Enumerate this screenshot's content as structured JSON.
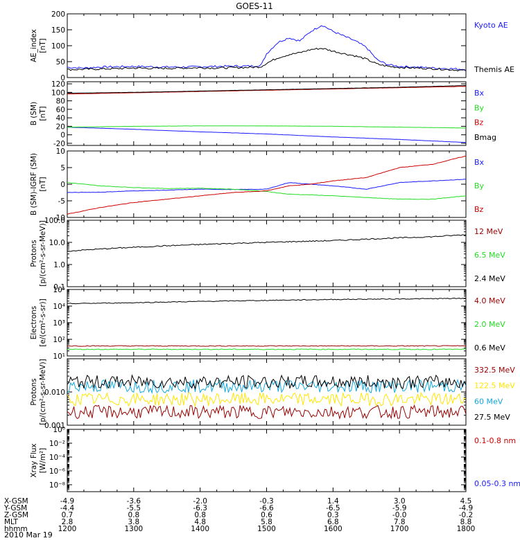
{
  "title": "GOES-11",
  "date_label": "2010 Mar 19",
  "colors": {
    "blue": "#1a1aff",
    "green": "#22dd22",
    "red": "#cc0000",
    "darkred": "#990000",
    "black": "#000000",
    "yellow": "#ffe600",
    "cyan": "#12a8dd"
  },
  "ephemeris": {
    "row_labels": [
      "X-GSM",
      "Y-GSM",
      "Z-GSM",
      "MLT",
      "hhmm"
    ],
    "columns": [
      {
        "x": 1200,
        "X": "-4.9",
        "Y": "-4.4",
        "Z": "0.7",
        "MLT": "2.8",
        "hhmm": "1200"
      },
      {
        "x": 1300,
        "X": "-3.6",
        "Y": "-5.5",
        "Z": "0.8",
        "MLT": "3.8",
        "hhmm": "1300"
      },
      {
        "x": 1400,
        "X": "-2.0",
        "Y": "-6.3",
        "Z": "0.8",
        "MLT": "4.8",
        "hhmm": "1400"
      },
      {
        "x": 1500,
        "X": "-0.3",
        "Y": "-6.6",
        "Z": "0.6",
        "MLT": "5.8",
        "hhmm": "1500"
      },
      {
        "x": 1600,
        "X": "1.4",
        "Y": "-6.5",
        "Z": "0.3",
        "MLT": "6.8",
        "hhmm": "1600"
      },
      {
        "x": 1700,
        "X": "3.0",
        "Y": "-5.9",
        "Z": "-0.0",
        "MLT": "7.8",
        "hhmm": "1700"
      },
      {
        "x": 1800,
        "X": "4.5",
        "Y": "-4.9",
        "Z": "-0.2",
        "MLT": "8.8",
        "hhmm": "1800"
      }
    ]
  },
  "chart_data": [
    {
      "type": "line",
      "ylabel": [
        "AE_index",
        "[nT]"
      ],
      "ylim": [
        0,
        200
      ],
      "yscale": "linear",
      "yticks": [
        0,
        50,
        100,
        150,
        200
      ],
      "ytick_labels": [
        "0",
        "50",
        "100",
        "150",
        "200"
      ],
      "series": [
        {
          "name": "Kyoto AE",
          "color": "#1a1aff",
          "x": [
            1200,
            1215,
            1230,
            1245,
            1300,
            1315,
            1330,
            1345,
            1400,
            1415,
            1430,
            1445,
            1455,
            1500,
            1510,
            1520,
            1530,
            1540,
            1550,
            1600,
            1610,
            1620,
            1630,
            1640,
            1650,
            1700,
            1715,
            1730,
            1745,
            1800
          ],
          "values": [
            32,
            30,
            33,
            34,
            35,
            34,
            33,
            33,
            34,
            35,
            36,
            36,
            38,
            75,
            110,
            125,
            115,
            145,
            165,
            145,
            130,
            115,
            95,
            55,
            40,
            35,
            33,
            30,
            28,
            26
          ]
        },
        {
          "name": "Themis AE",
          "color": "#000000",
          "x": [
            1200,
            1215,
            1230,
            1245,
            1300,
            1315,
            1330,
            1345,
            1400,
            1415,
            1430,
            1445,
            1455,
            1500,
            1510,
            1520,
            1530,
            1540,
            1550,
            1600,
            1610,
            1620,
            1630,
            1640,
            1650,
            1700,
            1715,
            1730,
            1745,
            1800
          ],
          "values": [
            25,
            26,
            27,
            28,
            30,
            29,
            29,
            30,
            31,
            30,
            31,
            32,
            34,
            45,
            62,
            72,
            78,
            88,
            92,
            83,
            75,
            68,
            58,
            42,
            35,
            32,
            30,
            28,
            25,
            22
          ]
        }
      ]
    },
    {
      "type": "line",
      "ylabel": [
        "B (SM)",
        "[nT]"
      ],
      "ylim": [
        -25,
        125
      ],
      "yscale": "linear",
      "yticks": [
        -20,
        0,
        20,
        40,
        60,
        80,
        100,
        120
      ],
      "ytick_labels": [
        "-20",
        "0",
        "20",
        "40",
        "60",
        "80",
        "100",
        "120"
      ],
      "series": [
        {
          "name": "Bx",
          "color": "#1a1aff",
          "x": [
            1200,
            1300,
            1400,
            1500,
            1600,
            1700,
            1800
          ],
          "values": [
            18,
            13,
            7,
            2,
            -5,
            -11,
            -18
          ]
        },
        {
          "name": "By",
          "color": "#22dd22",
          "x": [
            1200,
            1300,
            1400,
            1500,
            1600,
            1700,
            1800
          ],
          "values": [
            18,
            20,
            21,
            21,
            20,
            18,
            16
          ]
        },
        {
          "name": "Bz",
          "color": "#cc0000",
          "x": [
            1200,
            1300,
            1400,
            1500,
            1600,
            1700,
            1800
          ],
          "values": [
            96,
            99,
            102,
            105,
            108,
            111,
            114
          ]
        },
        {
          "name": "Bmag",
          "color": "#000000",
          "x": [
            1200,
            1300,
            1400,
            1500,
            1600,
            1700,
            1800
          ],
          "values": [
            98,
            100,
            103,
            106,
            109,
            112,
            116
          ]
        }
      ]
    },
    {
      "type": "line",
      "ylabel": [
        "B (SM)-IGRF (SM)",
        "[nT]"
      ],
      "ylim": [
        -10,
        10
      ],
      "yscale": "linear",
      "yticks": [
        -10,
        -5,
        0,
        5,
        10
      ],
      "ytick_labels": [
        "-10",
        "-5",
        "0",
        "5",
        "10"
      ],
      "series": [
        {
          "name": "Bx",
          "color": "#1a1aff",
          "x": [
            1200,
            1230,
            1300,
            1330,
            1400,
            1430,
            1500,
            1520,
            1540,
            1600,
            1630,
            1700,
            1730,
            1800
          ],
          "values": [
            -2.5,
            -2.4,
            -2,
            -1.8,
            -1.5,
            -1.6,
            -1.5,
            0.5,
            0,
            -0.5,
            -1.5,
            0.5,
            1,
            1.5
          ]
        },
        {
          "name": "By",
          "color": "#22dd22",
          "x": [
            1200,
            1230,
            1300,
            1330,
            1400,
            1430,
            1500,
            1520,
            1540,
            1600,
            1630,
            1700,
            1730,
            1800
          ],
          "values": [
            0.5,
            -0.5,
            -1,
            -1.3,
            -1.2,
            -1.5,
            -2.2,
            -3,
            -3.2,
            -3.5,
            -4,
            -4.5,
            -4.5,
            -3.5
          ]
        },
        {
          "name": "Bz",
          "color": "#cc0000",
          "x": [
            1200,
            1230,
            1300,
            1330,
            1400,
            1430,
            1500,
            1520,
            1540,
            1600,
            1630,
            1700,
            1730,
            1800
          ],
          "values": [
            -9,
            -7,
            -5.5,
            -4.5,
            -3.5,
            -2.5,
            -2,
            -0.5,
            0,
            1,
            2,
            5,
            6,
            8.5
          ]
        }
      ]
    },
    {
      "type": "line",
      "ylabel": [
        "Protons",
        "[p/(cm²-s-sr-MeV)]"
      ],
      "ylim": [
        0.1,
        100
      ],
      "yscale": "log",
      "yticks": [
        0.1,
        1,
        10,
        100
      ],
      "ytick_labels": [
        "0.1",
        "1.0",
        "10.0",
        "100.0"
      ],
      "series": [
        {
          "name": "12 MeV",
          "color": "#990000",
          "x": [],
          "values": []
        },
        {
          "name": "6.5 MeV",
          "color": "#22dd22",
          "x": [],
          "values": []
        },
        {
          "name": "2.4 MeV",
          "color": "#000000",
          "x": [
            1200,
            1230,
            1300,
            1330,
            1400,
            1430,
            1500,
            1530,
            1600,
            1630,
            1700,
            1730,
            1800
          ],
          "values": [
            4,
            5,
            6,
            7,
            8,
            9,
            10,
            11,
            12,
            14,
            16,
            18,
            22
          ]
        }
      ]
    },
    {
      "type": "line",
      "ylabel": [
        "Electrons",
        "[e/(cm²-s-sr)]"
      ],
      "ylim": [
        10,
        100000
      ],
      "yscale": "log",
      "yticks": [
        10,
        100,
        1000,
        10000,
        100000
      ],
      "ytick_labels": [
        "10¹",
        "10²",
        "10³",
        "10⁴",
        "10⁵"
      ],
      "series": [
        {
          "name": "4.0 MeV",
          "color": "#990000",
          "x": [
            1200,
            1800
          ],
          "values": [
            40,
            40
          ]
        },
        {
          "name": "2.0 MeV",
          "color": "#22dd22",
          "x": [
            1200,
            1800
          ],
          "values": [
            25,
            25
          ]
        },
        {
          "name": "0.6 MeV",
          "color": "#000000",
          "x": [
            1200,
            1300,
            1400,
            1500,
            1600,
            1700,
            1800
          ],
          "values": [
            14000,
            16000,
            19000,
            22000,
            25000,
            27000,
            29000
          ]
        }
      ]
    },
    {
      "type": "line",
      "ylabel": [
        "Protons",
        "[p/(cm²-s-sr-MeV)]"
      ],
      "ylim": [
        0.001,
        0.1
      ],
      "yscale": "log",
      "yticks": [
        0.001,
        0.01
      ],
      "ytick_labels": [
        "0.001",
        "0.010"
      ],
      "series": [
        {
          "name": "332.5 MeV",
          "color": "#990000",
          "x": [
            1200,
            1800
          ],
          "values": [
            0.0025,
            0.0025
          ]
        },
        {
          "name": "122.5 MeV",
          "color": "#ffe600",
          "x": [
            1200,
            1800
          ],
          "values": [
            0.006,
            0.006
          ]
        },
        {
          "name": "60 MeV",
          "color": "#12a8dd",
          "x": [
            1200,
            1800
          ],
          "values": [
            0.015,
            0.015
          ]
        },
        {
          "name": "27.5 MeV",
          "color": "#000000",
          "x": [
            1200,
            1800
          ],
          "values": [
            0.02,
            0.02
          ]
        }
      ]
    },
    {
      "type": "line",
      "ylabel": [
        "Xray Flux",
        "[W/m²]"
      ],
      "ylim": [
        1e-09,
        1
      ],
      "yscale": "log",
      "yticks": [
        1e-08,
        1e-06,
        0.0001,
        0.01,
        1
      ],
      "ytick_labels": [
        "10⁻⁸",
        "10⁻⁶",
        "10⁻⁴",
        "10⁻²",
        "10⁰"
      ],
      "series": [
        {
          "name": "0.1-0.8 nm",
          "color": "#cc0000",
          "x": [],
          "values": []
        },
        {
          "name": "0.05-0.3 nm",
          "color": "#1a1aff",
          "x": [],
          "values": []
        }
      ]
    }
  ]
}
